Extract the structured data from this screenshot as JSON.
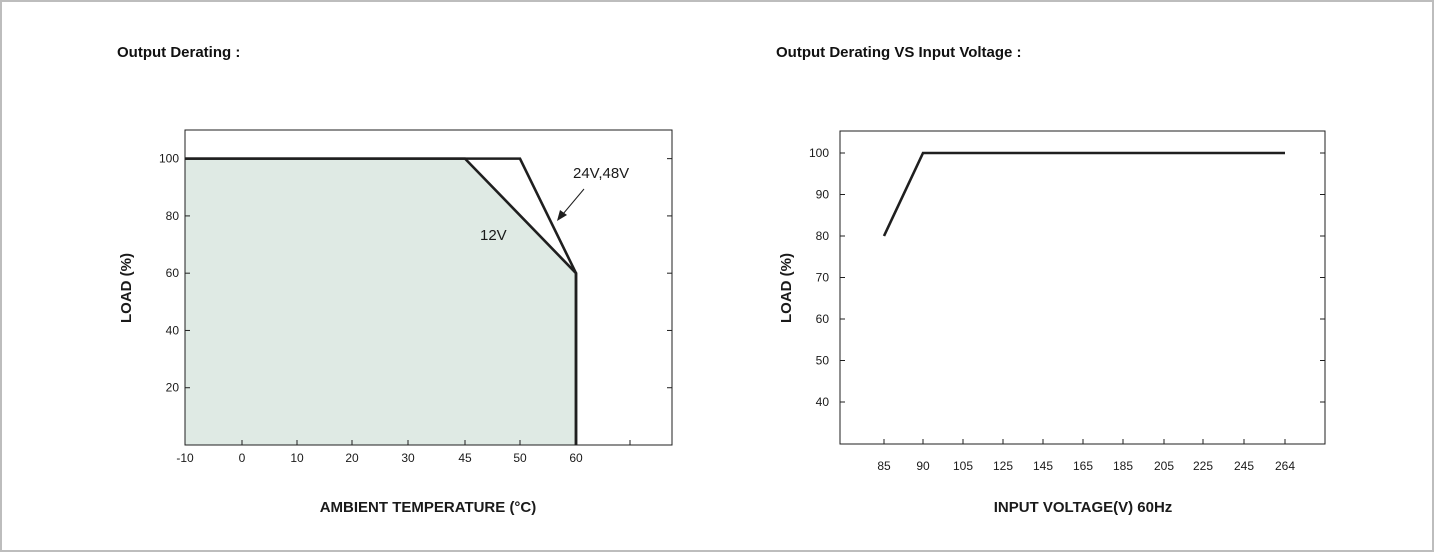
{
  "panels": {
    "left": {
      "title": "Output Derating :"
    },
    "right": {
      "title": "Output Derating VS Input Voltage :"
    }
  },
  "colors": {
    "fill": "#dfeae4",
    "line": "#1f1f1f",
    "frame": "#bdbdbd"
  },
  "chart_data": [
    {
      "type": "line",
      "title": "Output Derating :",
      "xlabel": "AMBIENT TEMPERATURE (°C)",
      "ylabel": "LOAD (%)",
      "x_ticks": [
        "-10",
        "0",
        "10",
        "20",
        "30",
        "45",
        "50",
        "60"
      ],
      "y_ticks": [
        "20",
        "40",
        "60",
        "80",
        "100"
      ],
      "y_range": [
        0,
        110
      ],
      "series": [
        {
          "name": "12V",
          "x": [
            "-10",
            "45",
            "60",
            "60"
          ],
          "y": [
            100,
            100,
            60,
            0
          ],
          "filled": true
        },
        {
          "name": "24V,48V",
          "x": [
            "-10",
            "50",
            "60",
            "60"
          ],
          "y": [
            100,
            100,
            60,
            0
          ],
          "filled": false
        }
      ],
      "annotations": [
        {
          "text": "24V,48V",
          "arrow": true
        },
        {
          "text": "12V",
          "arrow": false
        }
      ],
      "grid": false
    },
    {
      "type": "line",
      "title": "Output Derating VS Input Voltage :",
      "xlabel": "INPUT VOLTAGE(V) 60Hz",
      "ylabel": "LOAD (%)",
      "x_ticks": [
        "85",
        "90",
        "105",
        "125",
        "145",
        "165",
        "185",
        "205",
        "225",
        "245",
        "264"
      ],
      "y_ticks": [
        "40",
        "50",
        "60",
        "70",
        "80",
        "90",
        "100"
      ],
      "y_range": [
        30,
        105
      ],
      "series": [
        {
          "x": [
            "85",
            "90",
            "264"
          ],
          "y": [
            80,
            100,
            100
          ]
        }
      ],
      "grid": false
    }
  ]
}
